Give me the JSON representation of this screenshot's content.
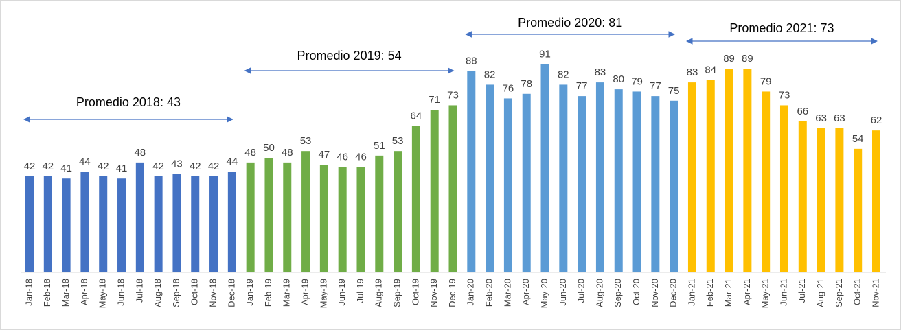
{
  "chart_data": {
    "type": "bar",
    "categories": [
      "Jan-18",
      "Feb-18",
      "Mar-18",
      "Apr-18",
      "May-18",
      "Jun-18",
      "Jul-18",
      "Aug-18",
      "Sep-18",
      "Oct-18",
      "Nov-18",
      "Dec-18",
      "Jan-19",
      "Feb-19",
      "Mar-19",
      "Apr-19",
      "May-19",
      "Jun-19",
      "Jul-19",
      "Aug-19",
      "Sep-19",
      "Oct-19",
      "Nov-19",
      "Dec-19",
      "Jan-20",
      "Feb-20",
      "Mar-20",
      "Apr-20",
      "May-20",
      "Jun-20",
      "Jul-20",
      "Aug-20",
      "Sep-20",
      "Oct-20",
      "Nov-20",
      "Dec-20",
      "Jan-21",
      "Feb-21",
      "Mar-21",
      "Apr-21",
      "May-21",
      "Jun-21",
      "Jul-21",
      "Aug-21",
      "Sep-21",
      "Oct-21",
      "Nov-21"
    ],
    "values": [
      42,
      42,
      41,
      44,
      42,
      41,
      48,
      42,
      43,
      42,
      42,
      44,
      48,
      50,
      48,
      53,
      47,
      46,
      46,
      51,
      53,
      64,
      71,
      73,
      88,
      82,
      76,
      78,
      91,
      82,
      77,
      83,
      80,
      79,
      77,
      75,
      83,
      84,
      89,
      89,
      79,
      73,
      66,
      63,
      63,
      54,
      62
    ],
    "colors": [
      "#4472c4",
      "#4472c4",
      "#4472c4",
      "#4472c4",
      "#4472c4",
      "#4472c4",
      "#4472c4",
      "#4472c4",
      "#4472c4",
      "#4472c4",
      "#4472c4",
      "#4472c4",
      "#70ad47",
      "#70ad47",
      "#70ad47",
      "#70ad47",
      "#70ad47",
      "#70ad47",
      "#70ad47",
      "#70ad47",
      "#70ad47",
      "#70ad47",
      "#70ad47",
      "#70ad47",
      "#5b9bd5",
      "#5b9bd5",
      "#5b9bd5",
      "#5b9bd5",
      "#5b9bd5",
      "#5b9bd5",
      "#5b9bd5",
      "#5b9bd5",
      "#5b9bd5",
      "#5b9bd5",
      "#5b9bd5",
      "#5b9bd5",
      "#ffc000",
      "#ffc000",
      "#ffc000",
      "#ffc000",
      "#ffc000",
      "#ffc000",
      "#ffc000",
      "#ffc000",
      "#ffc000",
      "#ffc000",
      "#ffc000"
    ],
    "ylim": [
      0,
      119
    ],
    "annotations": [
      "Promedio 2018: 43",
      "Promedio 2019: 54",
      "Promedio 2020: 81",
      "Promedio 2021: 73"
    ]
  }
}
